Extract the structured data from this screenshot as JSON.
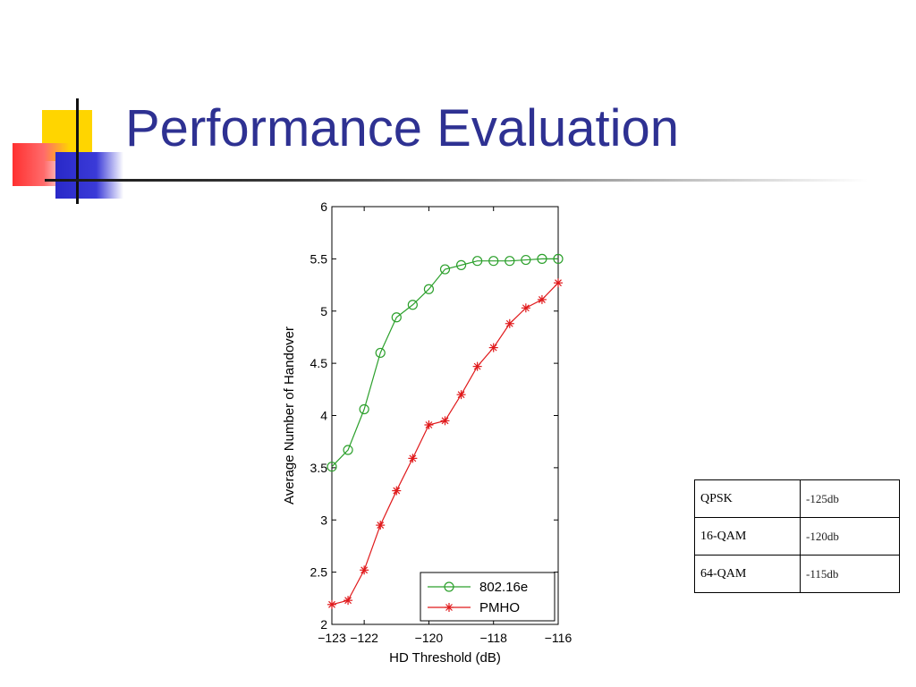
{
  "slide": {
    "title": "Performance Evaluation"
  },
  "chart_data": {
    "type": "line",
    "xlabel": "HD Threshold (dB)",
    "ylabel": "Average Number of Handover",
    "xlim": [
      -123,
      -116
    ],
    "ylim": [
      2,
      6
    ],
    "xticks": [
      -123,
      -122,
      -120,
      -118,
      -116
    ],
    "xtick_labels": [
      "−123",
      "−122",
      "−120",
      "−118",
      "−116"
    ],
    "yticks": [
      2,
      2.5,
      3,
      3.5,
      4,
      4.5,
      5,
      5.5,
      6
    ],
    "ytick_labels": [
      "2",
      "2.5",
      "3",
      "3.5",
      "4",
      "4.5",
      "5",
      "5.5",
      "6"
    ],
    "legend_position": "bottom-right",
    "grid": false,
    "series": [
      {
        "name": "802.16e",
        "color": "#2ca02c",
        "marker": "circle",
        "x": [
          -123,
          -122.5,
          -122,
          -121.5,
          -121,
          -120.5,
          -120,
          -119.5,
          -119,
          -118.5,
          -118,
          -117.5,
          -117,
          -116.5,
          -116
        ],
        "y": [
          3.51,
          3.67,
          4.06,
          4.6,
          4.94,
          5.06,
          5.21,
          5.4,
          5.44,
          5.48,
          5.48,
          5.48,
          5.49,
          5.5,
          5.5
        ]
      },
      {
        "name": "PMHO",
        "color": "#e0191b",
        "marker": "asterisk",
        "x": [
          -123,
          -122.5,
          -122,
          -121.5,
          -121,
          -120.5,
          -120,
          -119.5,
          -119,
          -118.5,
          -118,
          -117.5,
          -117,
          -116.5,
          -116
        ],
        "y": [
          2.19,
          2.23,
          2.52,
          2.95,
          3.28,
          3.59,
          3.91,
          3.95,
          4.2,
          4.47,
          4.65,
          4.88,
          5.03,
          5.11,
          5.27
        ]
      }
    ]
  },
  "table": {
    "rows": [
      {
        "modulation": "QPSK",
        "threshold": "-125db"
      },
      {
        "modulation": "16-QAM",
        "threshold": "-120db"
      },
      {
        "modulation": "64-QAM",
        "threshold": "-115db"
      }
    ]
  }
}
